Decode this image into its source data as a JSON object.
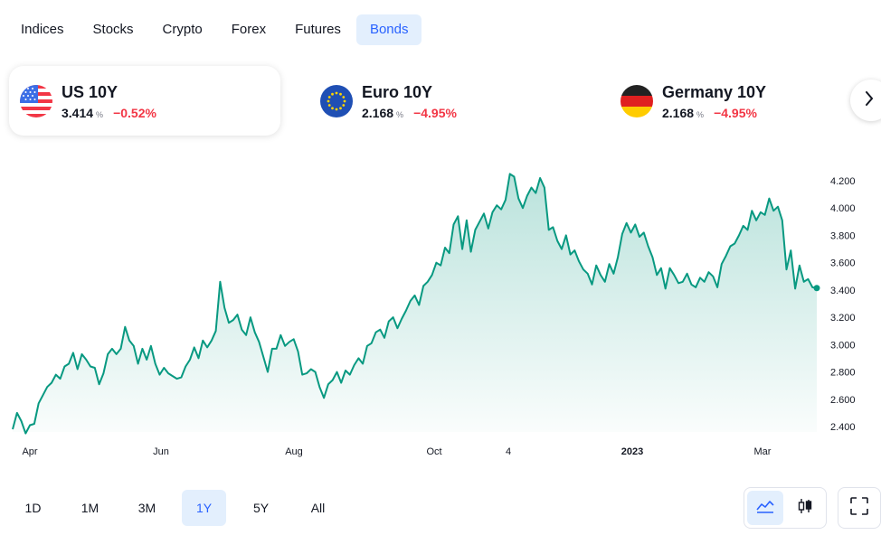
{
  "tabs": [
    {
      "label": "Indices"
    },
    {
      "label": "Stocks"
    },
    {
      "label": "Crypto"
    },
    {
      "label": "Forex"
    },
    {
      "label": "Futures"
    },
    {
      "label": "Bonds"
    }
  ],
  "active_tab": "Bonds",
  "cards": [
    {
      "title": "US 10Y",
      "value": "3.414",
      "unit": "%",
      "change": "−0.52%",
      "flag": "us-flag-icon",
      "selected": true
    },
    {
      "title": "Euro 10Y",
      "value": "2.168",
      "unit": "%",
      "change": "−4.95%",
      "flag": "eu-flag-icon",
      "selected": false
    },
    {
      "title": "Germany 10Y",
      "value": "2.168",
      "unit": "%",
      "change": "−4.95%",
      "flag": "de-flag-icon",
      "selected": false
    }
  ],
  "ranges": [
    {
      "label": "1D"
    },
    {
      "label": "1M"
    },
    {
      "label": "3M"
    },
    {
      "label": "1Y"
    },
    {
      "label": "5Y"
    },
    {
      "label": "All"
    }
  ],
  "active_range": "1Y",
  "colors": {
    "line": "#089981",
    "negative": "#f23645",
    "accent": "#2962ff",
    "active_bg": "#e3effd"
  },
  "chart_data": {
    "type": "area",
    "x_ticks": [
      "Apr",
      "Jun",
      "Aug",
      "Oct",
      "4",
      "2023",
      "Mar"
    ],
    "y_ticks": [
      "4.200",
      "4.000",
      "3.800",
      "3.600",
      "3.400",
      "3.200",
      "3.000",
      "2.800",
      "2.600",
      "2.400"
    ],
    "ylim": [
      2.38,
      4.26
    ],
    "last_value": 3.414,
    "grid": false,
    "values": [
      2.38,
      2.5,
      2.44,
      2.35,
      2.41,
      2.42,
      2.57,
      2.63,
      2.69,
      2.72,
      2.78,
      2.75,
      2.84,
      2.86,
      2.94,
      2.82,
      2.93,
      2.89,
      2.84,
      2.83,
      2.71,
      2.79,
      2.93,
      2.97,
      2.93,
      2.97,
      3.13,
      3.03,
      2.99,
      2.86,
      2.97,
      2.89,
      2.99,
      2.86,
      2.78,
      2.83,
      2.79,
      2.77,
      2.75,
      2.76,
      2.84,
      2.89,
      2.98,
      2.9,
      3.03,
      2.98,
      3.03,
      3.1,
      3.46,
      3.27,
      3.16,
      3.18,
      3.22,
      3.11,
      3.07,
      3.2,
      3.09,
      3.02,
      2.91,
      2.8,
      2.97,
      2.97,
      3.07,
      2.99,
      3.02,
      3.04,
      2.95,
      2.78,
      2.79,
      2.82,
      2.8,
      2.69,
      2.61,
      2.71,
      2.74,
      2.8,
      2.72,
      2.81,
      2.78,
      2.85,
      2.9,
      2.86,
      2.99,
      3.01,
      3.09,
      3.11,
      3.05,
      3.17,
      3.2,
      3.12,
      3.19,
      3.25,
      3.32,
      3.36,
      3.29,
      3.43,
      3.46,
      3.51,
      3.6,
      3.58,
      3.71,
      3.67,
      3.88,
      3.94,
      3.7,
      3.91,
      3.68,
      3.84,
      3.9,
      3.96,
      3.85,
      3.97,
      4.02,
      3.99,
      4.06,
      4.25,
      4.23,
      4.07,
      4.0,
      4.09,
      4.15,
      4.11,
      4.22,
      4.15,
      3.84,
      3.86,
      3.76,
      3.7,
      3.8,
      3.66,
      3.69,
      3.61,
      3.55,
      3.52,
      3.44,
      3.58,
      3.51,
      3.46,
      3.59,
      3.52,
      3.64,
      3.81,
      3.89,
      3.82,
      3.88,
      3.79,
      3.82,
      3.72,
      3.64,
      3.51,
      3.56,
      3.41,
      3.56,
      3.51,
      3.45,
      3.46,
      3.52,
      3.44,
      3.42,
      3.49,
      3.46,
      3.53,
      3.5,
      3.42,
      3.59,
      3.65,
      3.72,
      3.74,
      3.8,
      3.87,
      3.84,
      3.98,
      3.91,
      3.97,
      3.95,
      4.07,
      3.98,
      4.01,
      3.91,
      3.55,
      3.69,
      3.41,
      3.58,
      3.46,
      3.48,
      3.42,
      3.414
    ]
  }
}
